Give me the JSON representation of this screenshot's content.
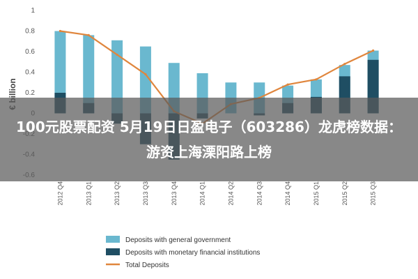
{
  "overlay": {
    "title": "100元股票配资 5月19日日盈电子（603286）龙虎榜数据：游资上海溧阳路上榜"
  },
  "chart_data": {
    "type": "bar",
    "categories": [
      "2012 Q4",
      "2013 Q1",
      "2013 Q2",
      "2013 Q3",
      "2013 Q4",
      "2014 Q1",
      "2014 Q2",
      "2014 Q3",
      "2014 Q4",
      "2015 Q1",
      "2015 Q2",
      "2015 Q3"
    ],
    "ylabel": "€ billion",
    "ylim": [
      -0.6,
      1
    ],
    "yticks": [
      "-0.6",
      "-0.4",
      "-0.2",
      "0",
      "0.2",
      "0.4",
      "0.6",
      "0.8",
      "1"
    ],
    "series": [
      {
        "name": "Deposits with general government",
        "type": "bar",
        "color": "#6ab8cf",
        "values": [
          0.8,
          0.76,
          0.71,
          0.65,
          0.49,
          0.39,
          0.3,
          0.3,
          0.27,
          0.33,
          0.47,
          0.61
        ]
      },
      {
        "name": "Deposits with monetary financial institutions",
        "type": "bar",
        "color": "#1f4e63",
        "values": [
          0.2,
          0.1,
          -0.1,
          -0.3,
          -0.45,
          -0.05,
          0.0,
          -0.02,
          0.1,
          0.16,
          0.36,
          0.52
        ]
      },
      {
        "name": "Total Deposits",
        "type": "line",
        "color": "#e0863d",
        "values": [
          0.8,
          0.76,
          0.57,
          0.38,
          0.02,
          -0.1,
          0.09,
          0.15,
          0.28,
          0.33,
          0.48,
          0.61
        ]
      }
    ],
    "legend_position": "bottom-center",
    "grid": false
  }
}
